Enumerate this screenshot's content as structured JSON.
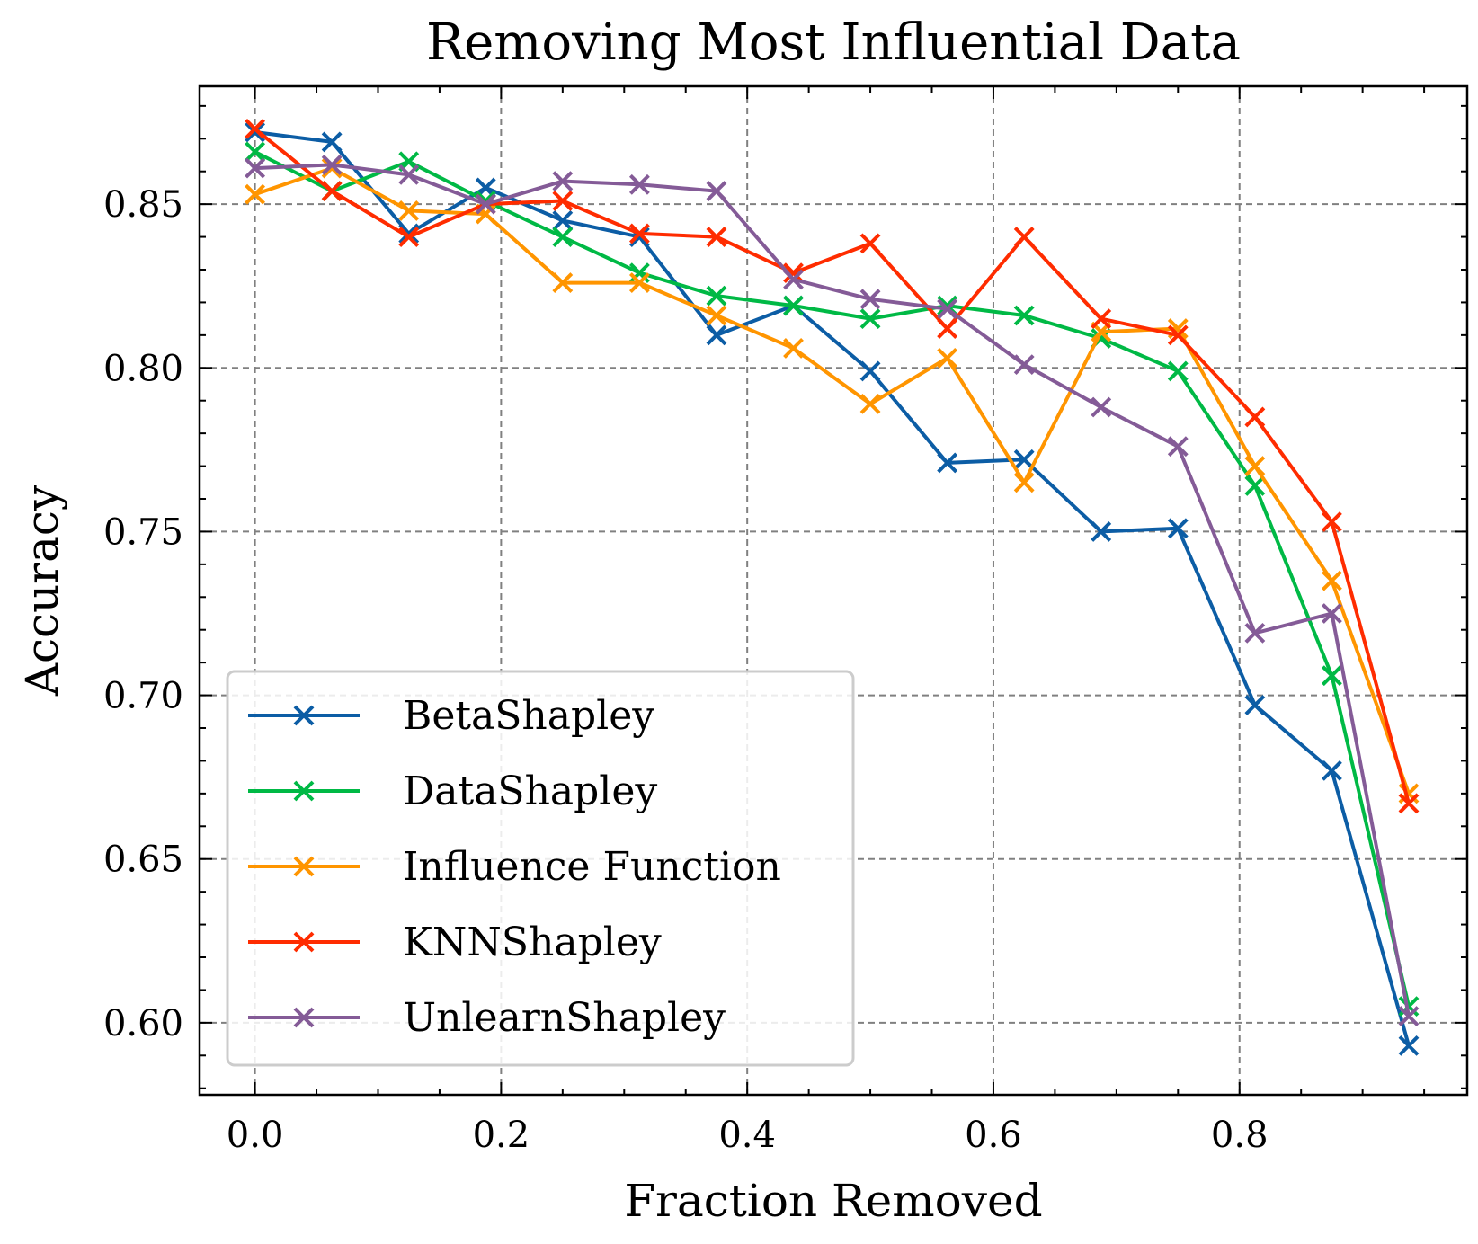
{
  "chart_data": {
    "type": "line",
    "title": "Removing Most Influential Data",
    "xlabel": "Fraction Removed",
    "ylabel": "Accuracy",
    "xlim": [
      -0.045,
      0.985
    ],
    "ylim": [
      0.578,
      0.886
    ],
    "xticks": [
      0.0,
      0.2,
      0.4,
      0.6,
      0.8
    ],
    "xtick_labels": [
      "0.0",
      "0.2",
      "0.4",
      "0.6",
      "0.8"
    ],
    "yticks": [
      0.6,
      0.65,
      0.7,
      0.75,
      0.8,
      0.85
    ],
    "ytick_labels": [
      "0.60",
      "0.65",
      "0.70",
      "0.75",
      "0.80",
      "0.85"
    ],
    "grid": true,
    "marker": "x",
    "legend_position": "lower-left",
    "x": [
      0.0,
      0.0625,
      0.125,
      0.1875,
      0.25,
      0.3125,
      0.375,
      0.4375,
      0.5,
      0.5625,
      0.625,
      0.6875,
      0.75,
      0.8125,
      0.875,
      0.9375
    ],
    "series": [
      {
        "name": "BetaShapley",
        "color": "#0C5DA5",
        "values": [
          0.872,
          0.869,
          0.841,
          0.855,
          0.845,
          0.84,
          0.81,
          0.819,
          0.799,
          0.771,
          0.772,
          0.75,
          0.751,
          0.697,
          0.677,
          0.593
        ]
      },
      {
        "name": "DataShapley",
        "color": "#00B945",
        "values": [
          0.866,
          0.854,
          0.863,
          0.851,
          0.84,
          0.829,
          0.822,
          0.819,
          0.815,
          0.819,
          0.816,
          0.809,
          0.799,
          0.764,
          0.706,
          0.605
        ]
      },
      {
        "name": "Influence Function",
        "color": "#FF9500",
        "values": [
          0.853,
          0.861,
          0.848,
          0.847,
          0.826,
          0.826,
          0.816,
          0.806,
          0.789,
          0.803,
          0.765,
          0.811,
          0.812,
          0.77,
          0.735,
          0.67
        ]
      },
      {
        "name": "KNNShapley",
        "color": "#FF2C00",
        "values": [
          0.873,
          0.854,
          0.84,
          0.85,
          0.851,
          0.841,
          0.84,
          0.829,
          0.838,
          0.812,
          0.84,
          0.815,
          0.81,
          0.785,
          0.753,
          0.667
        ]
      },
      {
        "name": "UnlearnShapley",
        "color": "#845B97",
        "values": [
          0.861,
          0.862,
          0.859,
          0.85,
          0.857,
          0.856,
          0.854,
          0.827,
          0.821,
          0.818,
          0.801,
          0.788,
          0.776,
          0.719,
          0.725,
          0.602
        ]
      }
    ]
  }
}
